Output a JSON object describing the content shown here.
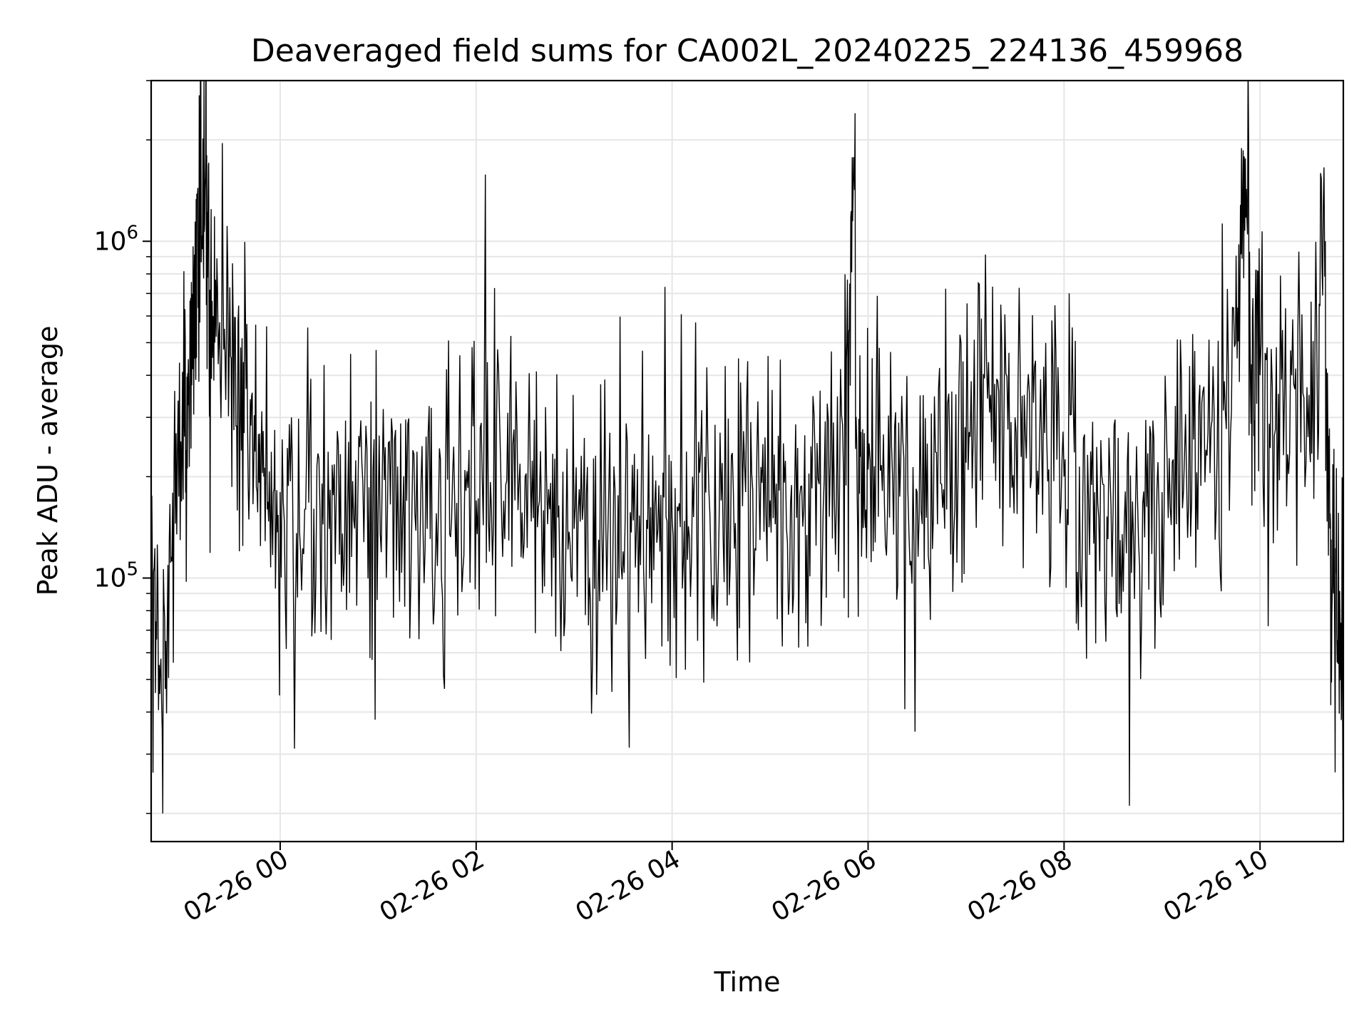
{
  "chart_data": {
    "type": "line",
    "title": "Deaveraged field sums for CA002L_20240225_224136_459968",
    "xlabel": "Time",
    "ylabel": "Peak ADU - average",
    "yscale": "log",
    "ylim": [
      16500,
      3000000
    ],
    "xlim": [
      "2024-02-25 22:41",
      "2024-02-26 10:51"
    ],
    "grid": true,
    "line_color": "#000000",
    "x_ticks": [
      {
        "value": "2024-02-26 00:00",
        "label": "02-26 00"
      },
      {
        "value": "2024-02-26 02:00",
        "label": "02-26 02"
      },
      {
        "value": "2024-02-26 04:00",
        "label": "02-26 04"
      },
      {
        "value": "2024-02-26 06:00",
        "label": "02-26 06"
      },
      {
        "value": "2024-02-26 08:00",
        "label": "02-26 08"
      },
      {
        "value": "2024-02-26 10:00",
        "label": "02-26 10"
      }
    ],
    "y_ticks": [
      {
        "value": 100000,
        "base": "10",
        "exp": "5"
      },
      {
        "value": 1000000,
        "base": "10",
        "exp": "6"
      }
    ],
    "series": [
      {
        "x": [
          "2024-02-25 22:41",
          "2024-02-25 22:50",
          "2024-02-25 23:00",
          "2024-02-25 23:05",
          "2024-02-25 23:10",
          "2024-02-25 23:15",
          "2024-02-25 23:20",
          "2024-02-25 23:30",
          "2024-02-25 23:40",
          "2024-02-25 23:50",
          "2024-02-26 00:00",
          "2024-02-26 00:15",
          "2024-02-26 00:30",
          "2024-02-26 00:45",
          "2024-02-26 01:00",
          "2024-02-26 01:15",
          "2024-02-26 01:30",
          "2024-02-26 01:45",
          "2024-02-26 02:00",
          "2024-02-26 02:15",
          "2024-02-26 02:30",
          "2024-02-26 02:45",
          "2024-02-26 03:00",
          "2024-02-26 03:15",
          "2024-02-26 03:30",
          "2024-02-26 03:45",
          "2024-02-26 04:00",
          "2024-02-26 04:15",
          "2024-02-26 04:30",
          "2024-02-26 04:45",
          "2024-02-26 05:00",
          "2024-02-26 05:15",
          "2024-02-26 05:30",
          "2024-02-26 05:45",
          "2024-02-26 05:52",
          "2024-02-26 06:00",
          "2024-02-26 06:15",
          "2024-02-26 06:30",
          "2024-02-26 06:45",
          "2024-02-26 07:00",
          "2024-02-26 07:15",
          "2024-02-26 07:30",
          "2024-02-26 07:45",
          "2024-02-26 08:00",
          "2024-02-26 08:15",
          "2024-02-26 08:30",
          "2024-02-26 08:45",
          "2024-02-26 09:00",
          "2024-02-26 09:15",
          "2024-02-26 09:30",
          "2024-02-26 09:45",
          "2024-02-26 09:53",
          "2024-02-26 10:00",
          "2024-02-26 10:15",
          "2024-02-26 10:30",
          "2024-02-26 10:40",
          "2024-02-26 10:45",
          "2024-02-26 10:51"
        ],
        "values": [
          70000,
          65000,
          300000,
          450000,
          900000,
          1800000,
          500000,
          450000,
          300000,
          200000,
          180000,
          160000,
          140000,
          150000,
          160000,
          150000,
          140000,
          150000,
          170000,
          220000,
          200000,
          160000,
          140000,
          130000,
          120000,
          140000,
          150000,
          160000,
          170000,
          180000,
          170000,
          180000,
          190000,
          200000,
          2400000,
          210000,
          200000,
          180000,
          190000,
          220000,
          350000,
          300000,
          250000,
          200000,
          170000,
          160000,
          170000,
          180000,
          200000,
          280000,
          500000,
          2000000,
          400000,
          350000,
          350000,
          1000000,
          90000,
          60000
        ]
      }
    ],
    "noise": {
      "seed": 459968,
      "samples_per_segment": 24,
      "spread_decades": 0.3
    }
  }
}
